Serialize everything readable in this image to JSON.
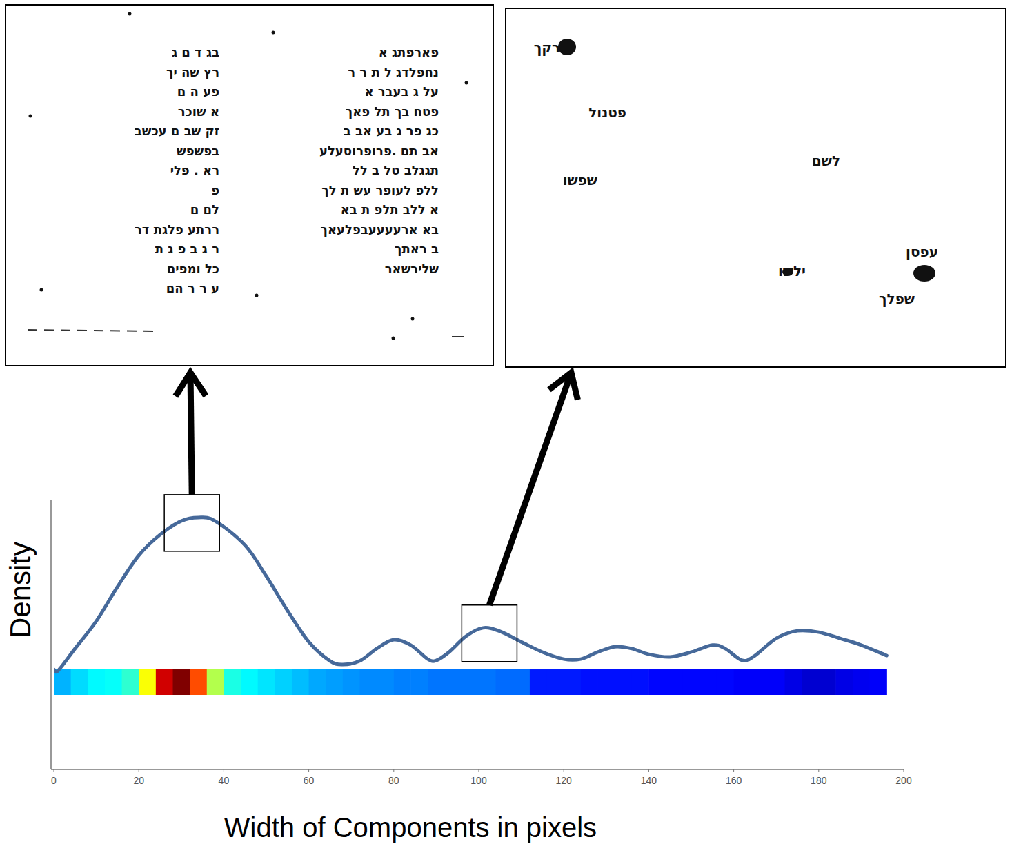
{
  "chart_data": {
    "type": "line",
    "x_label": "Width of Components in pixels",
    "y_label": "Density",
    "x": [
      0,
      1,
      5,
      10,
      15,
      20,
      25,
      30,
      34,
      38,
      45,
      50,
      55,
      60,
      65,
      68,
      72,
      76,
      80,
      84,
      88,
      90,
      93,
      97,
      101,
      105,
      110,
      115,
      120,
      124,
      128,
      132,
      136,
      140,
      145,
      150,
      155,
      158,
      162,
      165,
      170,
      175,
      180,
      185,
      190,
      196
    ],
    "values": [
      0.372,
      0.367,
      0.449,
      0.551,
      0.679,
      0.795,
      0.872,
      0.923,
      0.936,
      0.923,
      0.833,
      0.718,
      0.59,
      0.474,
      0.403,
      0.39,
      0.403,
      0.449,
      0.482,
      0.462,
      0.41,
      0.405,
      0.436,
      0.495,
      0.526,
      0.513,
      0.474,
      0.436,
      0.41,
      0.41,
      0.436,
      0.456,
      0.449,
      0.428,
      0.418,
      0.436,
      0.462,
      0.449,
      0.405,
      0.423,
      0.487,
      0.515,
      0.51,
      0.487,
      0.462,
      0.423
    ],
    "color": "#46699a",
    "xlim": [
      0,
      200
    ],
    "xticks": [
      0,
      20,
      40,
      60,
      80,
      100,
      120,
      140,
      160,
      180,
      200
    ],
    "ylim": [
      0,
      1
    ],
    "tick_labels": "x",
    "grid": false,
    "strip": {
      "bins": [
        0,
        4,
        8,
        12,
        16,
        20,
        24,
        28,
        32,
        36,
        40,
        44,
        48,
        52,
        56,
        60,
        64,
        68,
        72,
        76,
        80,
        84,
        88,
        92,
        96,
        100,
        104,
        108,
        112,
        116,
        120,
        124,
        128,
        132,
        136,
        140,
        144,
        148,
        152,
        156,
        160,
        164,
        168,
        172,
        176,
        180,
        184,
        188,
        192,
        196
      ],
      "values": [
        0.3,
        0.34,
        0.37,
        0.38,
        0.42,
        0.62,
        0.92,
        1.0,
        0.8,
        0.55,
        0.4,
        0.37,
        0.35,
        0.33,
        0.31,
        0.29,
        0.28,
        0.27,
        0.26,
        0.26,
        0.25,
        0.25,
        0.24,
        0.24,
        0.24,
        0.24,
        0.23,
        0.23,
        0.15,
        0.15,
        0.15,
        0.14,
        0.14,
        0.14,
        0.14,
        0.13,
        0.13,
        0.13,
        0.13,
        0.13,
        0.12,
        0.12,
        0.12,
        0.1,
        0.08,
        0.08,
        0.1,
        0.11,
        0.12
      ],
      "range": [
        0,
        1
      ]
    },
    "highlights": [
      {
        "xlim": [
          26,
          39
        ]
      },
      {
        "xlim": [
          96,
          109
        ]
      }
    ]
  },
  "insets": [
    {
      "left_lines": [
        "בג  ד ם  ג",
        "רץ  שה  יך",
        "פע  ה  ם",
        "א        שוכר",
        "זק שב  ם  עכשב",
        "בפשפש",
        "רא . פלי",
        "פ",
        "לם      ם",
        "ררתע   פלגת דר",
        "ר ג ב פ ג    ת",
        "כל        ומפים",
        "ע ר ר הם"
      ],
      "right_lines": [
        "פארפתג א",
        "נחפלדג ל ת ר ר",
        "על ג בעבר   א",
        "פטח בך תל פאך",
        "כג פר ג בע אב  ב",
        "אב תם .פרופרוסעלע",
        "תגגלב טל ב   לל",
        "ללפ לעופר עש ת לך",
        "א ללב תלפ ת בא",
        "בא   ארעעעעבפלעאך",
        "ב ראתך",
        "שלירשאר"
      ]
    },
    {
      "words": [
        "רקך",
        "פטנול",
        "שפשו",
        "לשם",
        "ילשו",
        "עפסן",
        "שפלך"
      ]
    }
  ]
}
